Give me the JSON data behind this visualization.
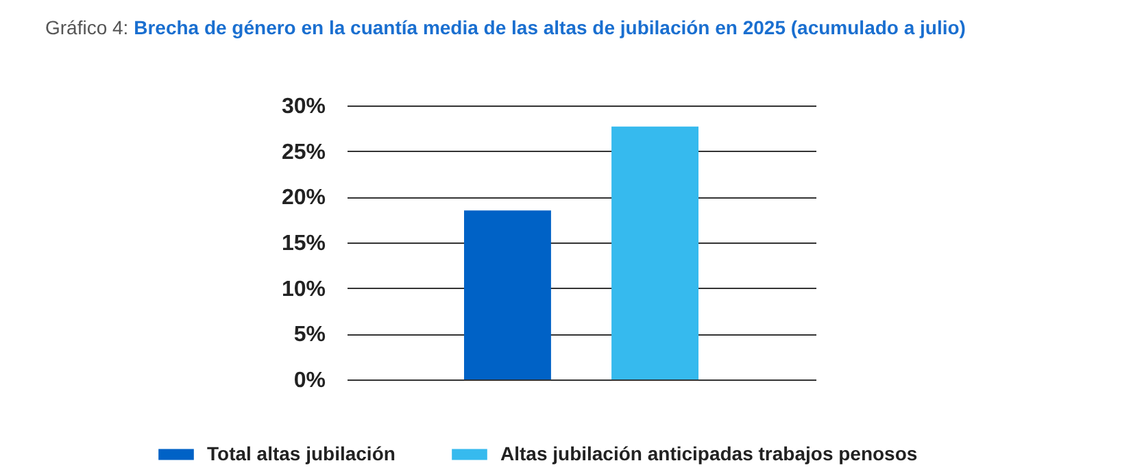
{
  "chart_data": {
    "type": "bar",
    "title": "Gráfico 4:",
    "subtitle": "Brecha de género en la cuantía media de las altas de jubilación en 2025 (acumulado a julio)",
    "categories": [
      null
    ],
    "series": [
      {
        "name": "Total altas jubilación",
        "color": "#0062c6",
        "values": [
          18.5
        ]
      },
      {
        "name": "Altas jubilación anticipadas trabajos penosos",
        "color": "#36baee",
        "values": [
          27.7
        ]
      }
    ],
    "ylim": [
      0,
      30
    ],
    "yticks": [
      {
        "value": 0,
        "label": "0%"
      },
      {
        "value": 5,
        "label": "5%"
      },
      {
        "value": 10,
        "label": "10%"
      },
      {
        "value": 15,
        "label": "15%"
      },
      {
        "value": 20,
        "label": "20%"
      },
      {
        "value": 25,
        "label": "25%"
      },
      {
        "value": 30,
        "label": "30%"
      }
    ],
    "grid": "y",
    "legend": "bottom"
  }
}
